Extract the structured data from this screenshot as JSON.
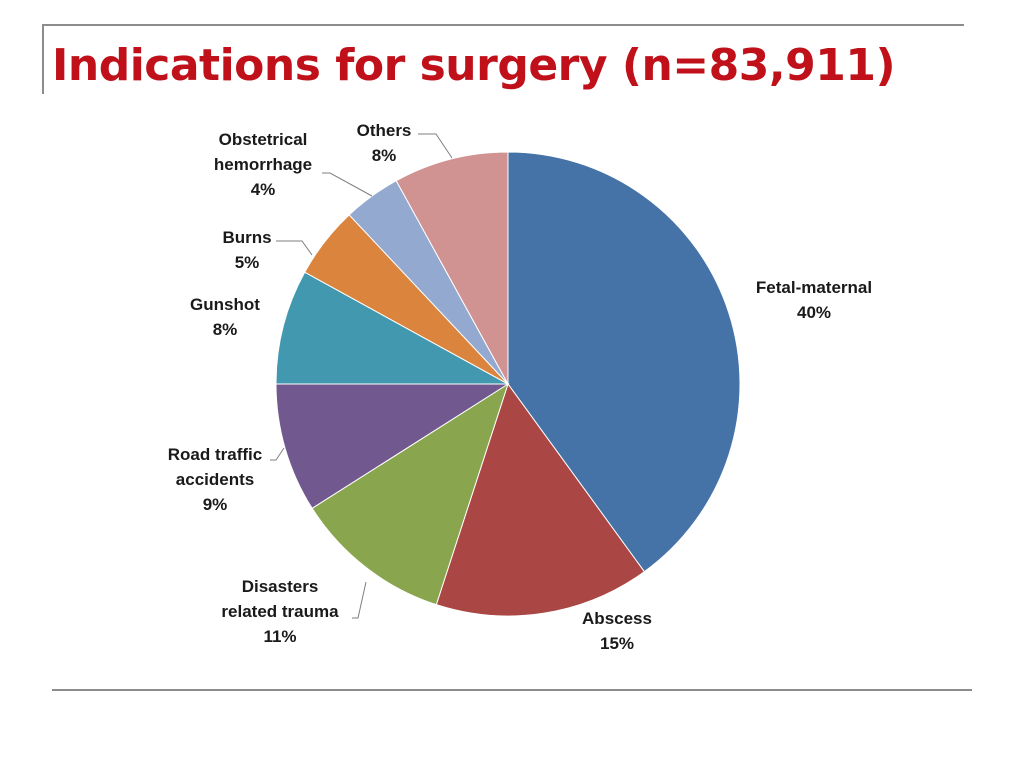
{
  "title": "Indications for surgery (n=83,911)",
  "chart_data": {
    "type": "pie",
    "title": "Indications for surgery (n=83,911)",
    "start_angle_deg": 0,
    "direction": "clockwise",
    "slices": [
      {
        "label": [
          "Fetal-maternal"
        ],
        "value": 40,
        "pct_label": "40%",
        "color": "#4572A7"
      },
      {
        "label": [
          "Abscess"
        ],
        "value": 15,
        "pct_label": "15%",
        "color": "#AA4643"
      },
      {
        "label": [
          "Disasters",
          "related trauma"
        ],
        "value": 11,
        "pct_label": "11%",
        "color": "#89A54E"
      },
      {
        "label": [
          "Road traffic",
          "accidents"
        ],
        "value": 9,
        "pct_label": "9%",
        "color": "#71588F"
      },
      {
        "label": [
          "Gunshot"
        ],
        "value": 8,
        "pct_label": "8%",
        "color": "#4198AF"
      },
      {
        "label": [
          "Burns"
        ],
        "value": 5,
        "pct_label": "5%",
        "color": "#DB843D"
      },
      {
        "label": [
          "Obstetrical",
          "hemorrhage"
        ],
        "value": 4,
        "pct_label": "4%",
        "color": "#93A9CF"
      },
      {
        "label": [
          "Others"
        ],
        "value": 8,
        "pct_label": "8%",
        "color": "#D19392"
      }
    ]
  }
}
